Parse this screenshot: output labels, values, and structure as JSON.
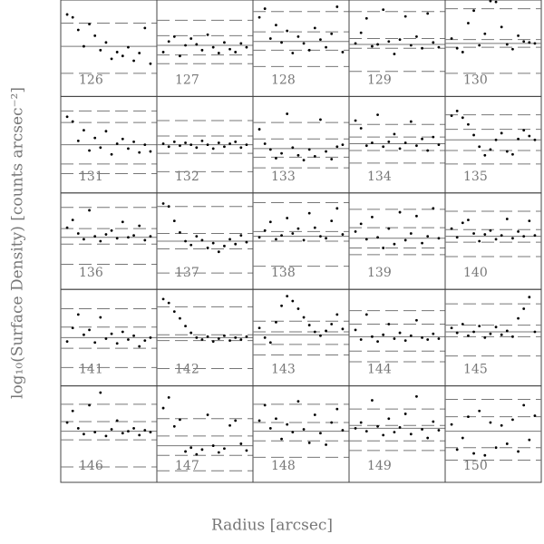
{
  "chart_data": {
    "type": "scatter",
    "xlabel": "Radius [arcsec]",
    "ylabel": "log₁₀(Surface Density) [counts arcsec⁻²]",
    "x": [
      0.5,
      1.5,
      2.5,
      3.5,
      4.5,
      5.5,
      6.5,
      7.5,
      8.5,
      9.5,
      10.5,
      11.5,
      12.5,
      13.5,
      14.5,
      15.5
    ],
    "xlim": [
      0,
      16
    ],
    "ylim": [
      0,
      10
    ],
    "point_color": "#000000",
    "line_color": "#777777",
    "panels": [
      {
        "label": "126",
        "values": [
          8.5,
          8.2,
          6.9,
          5.2,
          7.5,
          6.3,
          4.8,
          5.6,
          3.9,
          4.6,
          4.2,
          5.1,
          3.7,
          4.5,
          7.1,
          3.4
        ],
        "mean": 5.2,
        "dashed": [
          2.4,
          7.6
        ]
      },
      {
        "label": "127",
        "values": [
          4.6,
          5.7,
          6.2,
          4.2,
          5.3,
          6.0,
          5.4,
          4.8,
          6.4,
          5.1,
          4.5,
          5.6,
          4.9,
          4.6,
          5.5,
          5.1
        ],
        "mean": 5.3,
        "dashed": [
          4.3,
          6.3,
          7.9,
          3.4
        ]
      },
      {
        "label": "128",
        "values": [
          8.2,
          9.1,
          6.0,
          7.4,
          5.6,
          6.8,
          4.5,
          6.2,
          5.5,
          4.8,
          7.1,
          5.9,
          5.1,
          6.5,
          9.3,
          4.6
        ],
        "mean": 5.7,
        "dashed": [
          4.8,
          6.7,
          8.8,
          3.1
        ]
      },
      {
        "label": "129",
        "values": [
          5.5,
          6.6,
          8.1,
          5.2,
          5.4,
          9.0,
          5.7,
          4.4,
          5.9,
          8.3,
          5.3,
          6.2,
          5.0,
          8.6,
          5.6,
          5.1
        ],
        "mean": 5.4,
        "dashed": [
          5.0,
          6.0,
          2.6,
          8.8
        ]
      },
      {
        "label": "130",
        "values": [
          6.0,
          5.0,
          4.6,
          7.6,
          8.9,
          5.3,
          6.5,
          9.9,
          9.8,
          7.2,
          5.4,
          4.9,
          6.3,
          5.7,
          5.6,
          5.5
        ],
        "mean": 5.5,
        "dashed": [
          5.1,
          5.9,
          2.4,
          9.1
        ]
      },
      {
        "label": "131",
        "values": [
          7.9,
          7.4,
          5.4,
          6.5,
          4.4,
          5.7,
          4.7,
          6.4,
          4.0,
          5.1,
          5.6,
          4.6,
          5.3,
          4.2,
          5.0,
          4.3
        ],
        "mean": 5.0,
        "dashed": [
          3.0,
          7.3,
          2.0,
          8.5
        ]
      },
      {
        "label": "132",
        "values": [
          5.1,
          4.8,
          5.3,
          4.9,
          5.2,
          5.0,
          4.7,
          5.4,
          5.0,
          4.6,
          5.2,
          4.8,
          5.1,
          5.3,
          4.7,
          5.0
        ],
        "mean": 5.0,
        "dashed": [
          4.1,
          5.9,
          2.2,
          7.5
        ]
      },
      {
        "label": "133",
        "values": [
          6.6,
          5.1,
          4.5,
          3.6,
          4.1,
          8.2,
          4.7,
          3.9,
          3.4,
          4.5,
          3.8,
          7.6,
          4.3,
          3.5,
          4.8,
          5.0
        ],
        "mean": 4.6,
        "dashed": [
          3.7,
          5.6,
          2.6,
          7.3
        ]
      },
      {
        "label": "134",
        "values": [
          7.5,
          6.7,
          4.9,
          5.2,
          8.1,
          4.8,
          5.3,
          6.1,
          4.6,
          5.2,
          7.4,
          4.9,
          5.6,
          4.4,
          5.8,
          5.0
        ],
        "mean": 5.1,
        "dashed": [
          4.4,
          5.8,
          3.1,
          7.1
        ]
      },
      {
        "label": "135",
        "values": [
          8.0,
          8.5,
          7.8,
          7.1,
          6.0,
          4.8,
          3.9,
          4.5,
          5.5,
          6.2,
          4.3,
          4.0,
          5.6,
          6.5,
          5.9,
          5.5
        ],
        "mean": 5.5,
        "dashed": [
          4.4,
          6.6,
          3.0,
          8.1
        ]
      },
      {
        "label": "136",
        "values": [
          6.4,
          7.2,
          5.8,
          5.2,
          8.2,
          5.5,
          5.0,
          5.7,
          6.1,
          5.3,
          7.0,
          5.4,
          5.6,
          6.6,
          5.1,
          5.5
        ],
        "mean": 5.4,
        "dashed": [
          4.7,
          6.3,
          2.6,
          8.5
        ]
      },
      {
        "label": "137",
        "values": [
          8.9,
          8.6,
          7.1,
          5.9,
          5.0,
          4.6,
          5.5,
          5.1,
          4.3,
          4.8,
          3.9,
          4.5,
          5.2,
          4.7,
          5.6,
          4.9
        ],
        "mean": 5.0,
        "dashed": [
          4.2,
          5.8,
          1.7,
          8.6
        ]
      },
      {
        "label": "138",
        "values": [
          5.4,
          6.1,
          7.0,
          5.2,
          5.6,
          7.4,
          5.8,
          6.3,
          5.1,
          7.9,
          6.4,
          5.5,
          5.3,
          7.1,
          8.4,
          5.7
        ],
        "mean": 5.5,
        "dashed": [
          5.0,
          6.0,
          2.4,
          9.0
        ]
      },
      {
        "label": "139",
        "values": [
          6.0,
          6.8,
          5.2,
          7.5,
          5.4,
          4.3,
          6.3,
          4.7,
          8.0,
          5.1,
          5.8,
          7.6,
          4.8,
          5.5,
          8.4,
          5.3
        ],
        "mean": 5.3,
        "dashed": [
          4.3,
          6.4,
          3.6,
          8.3
        ]
      },
      {
        "label": "140",
        "values": [
          6.3,
          5.4,
          6.9,
          7.2,
          5.8,
          5.0,
          5.7,
          6.1,
          5.2,
          5.6,
          7.3,
          5.3,
          6.0,
          5.5,
          7.1,
          5.6
        ],
        "mean": 5.5,
        "dashed": [
          4.9,
          6.2,
          3.4,
          8.1
        ]
      },
      {
        "label": "141",
        "values": [
          4.6,
          6.0,
          7.4,
          5.3,
          5.8,
          4.5,
          7.1,
          4.9,
          5.4,
          4.4,
          5.6,
          4.8,
          5.2,
          4.1,
          4.7,
          5.0
        ],
        "mean": 5.0,
        "dashed": [
          3.9,
          6.1,
          1.9,
          8.0
        ]
      },
      {
        "label": "142",
        "values": [
          9.0,
          8.6,
          7.7,
          7.0,
          6.2,
          5.5,
          5.0,
          4.8,
          5.1,
          4.6,
          4.9,
          5.2,
          4.7,
          5.0,
          4.8,
          5.1
        ],
        "mean": 5.0,
        "dashed": [
          4.7,
          5.3,
          1.8,
          8.2
        ]
      },
      {
        "label": "143",
        "values": [
          6.0,
          5.0,
          4.5,
          6.6,
          8.3,
          9.3,
          8.8,
          8.0,
          7.1,
          6.3,
          5.6,
          5.2,
          5.7,
          6.4,
          7.4,
          5.9
        ],
        "mean": 5.3,
        "dashed": [
          4.3,
          5.6,
          3.2,
          6.7
        ]
      },
      {
        "label": "144",
        "values": [
          5.8,
          4.8,
          7.4,
          5.1,
          4.6,
          5.3,
          6.4,
          4.9,
          5.5,
          4.7,
          5.2,
          6.8,
          5.0,
          4.8,
          5.4,
          4.9
        ],
        "mean": 5.1,
        "dashed": [
          3.6,
          6.4,
          2.5,
          7.8
        ]
      },
      {
        "label": "145",
        "values": [
          6.0,
          5.5,
          6.4,
          5.2,
          5.6,
          6.2,
          5.0,
          5.4,
          6.1,
          5.3,
          5.7,
          5.1,
          7.0,
          8.0,
          9.2,
          5.6
        ],
        "mean": 5.6,
        "dashed": [
          5.1,
          6.3,
          3.1,
          8.5
        ]
      },
      {
        "label": "146",
        "values": [
          6.2,
          7.4,
          5.6,
          5.0,
          8.0,
          5.2,
          9.3,
          4.8,
          5.5,
          6.4,
          5.1,
          5.3,
          5.6,
          4.9,
          5.4,
          5.2
        ],
        "mean": 5.3,
        "dashed": [
          4.4,
          6.3,
          1.6,
          8.1
        ]
      },
      {
        "label": "147",
        "values": [
          7.7,
          8.8,
          5.8,
          6.5,
          3.2,
          3.6,
          2.9,
          3.4,
          7.0,
          3.8,
          3.1,
          3.5,
          5.9,
          6.4,
          4.0,
          3.3
        ],
        "mean": 3.8,
        "dashed": [
          2.8,
          4.8,
          1.2,
          6.6
        ]
      },
      {
        "label": "148",
        "values": [
          6.4,
          8.0,
          5.6,
          6.6,
          4.5,
          6.0,
          5.2,
          8.4,
          5.5,
          4.1,
          7.0,
          5.1,
          3.9,
          6.2,
          7.6,
          5.4
        ],
        "mean": 5.3,
        "dashed": [
          4.3,
          6.2,
          2.6,
          8.1
        ]
      },
      {
        "label": "149",
        "values": [
          5.6,
          6.2,
          5.3,
          8.5,
          5.8,
          4.9,
          6.6,
          5.2,
          5.7,
          7.1,
          5.0,
          8.9,
          5.5,
          4.6,
          6.3,
          5.4
        ],
        "mean": 5.6,
        "dashed": [
          4.3,
          5.9,
          3.3,
          7.6
        ]
      },
      {
        "label": "150",
        "values": [
          6.0,
          3.4,
          4.6,
          6.8,
          3.0,
          7.4,
          2.8,
          6.2,
          3.6,
          5.9,
          4.0,
          6.5,
          3.2,
          8.0,
          4.4,
          6.9
        ],
        "mean": 5.3,
        "dashed": [
          3.6,
          6.8,
          2.3,
          8.6
        ]
      }
    ]
  }
}
